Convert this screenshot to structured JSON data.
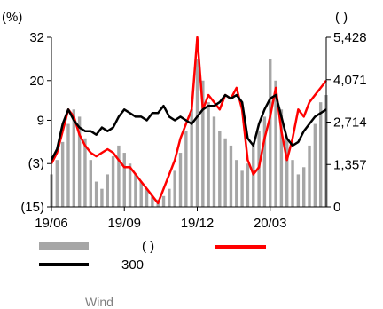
{
  "chart_data": {
    "type": "bar+line",
    "left_axis": {
      "unit_label": "(%)",
      "ticks": [
        "32",
        "20",
        "9",
        "(3)",
        "(15)"
      ],
      "values": [
        32,
        20,
        9,
        -3,
        -15
      ],
      "ylim": [
        -15,
        32
      ]
    },
    "right_axis": {
      "unit_label": "(      )",
      "ticks": [
        "5,428",
        "4,071",
        "2,714",
        "1,357",
        "0"
      ],
      "values": [
        5428,
        4071,
        2714,
        1357,
        0
      ],
      "ylim": [
        0,
        5428
      ]
    },
    "x_ticks": [
      "19/06",
      "19/09",
      "19/12",
      "20/03"
    ],
    "x_tick_positions": [
      0,
      13,
      26,
      39
    ],
    "series": [
      {
        "kind": "bar",
        "axis": "left",
        "color": "#a6a6a6",
        "legend": "(      )",
        "x": [
          0,
          1,
          2,
          3,
          4,
          5,
          6,
          7,
          8,
          9,
          10,
          11,
          12,
          13,
          14,
          15,
          16,
          17,
          18,
          19,
          20,
          21,
          22,
          23,
          24,
          25,
          26,
          27,
          28,
          29,
          30,
          31,
          32,
          33,
          34,
          35,
          36,
          37,
          38,
          39,
          40,
          41,
          42,
          43,
          44,
          45,
          46,
          47,
          48,
          49
        ],
        "values": [
          -6,
          -2,
          3,
          8,
          12,
          10,
          4,
          -2,
          -8,
          -10,
          -6,
          -1,
          2,
          0,
          -3,
          -6,
          -8,
          -10,
          -12,
          -13,
          -12,
          -10,
          -5,
          0,
          6,
          12,
          26,
          20,
          14,
          10,
          6,
          4,
          2,
          -2,
          -5,
          -3,
          2,
          6,
          10,
          26,
          20,
          12,
          4,
          -2,
          -6,
          -4,
          2,
          8,
          14,
          16
        ]
      },
      {
        "kind": "line",
        "axis": "left",
        "color": "#ff0000",
        "legend": "",
        "x": [
          0,
          1,
          2,
          3,
          4,
          5,
          6,
          7,
          8,
          9,
          10,
          11,
          12,
          13,
          14,
          15,
          16,
          17,
          18,
          19,
          20,
          21,
          22,
          23,
          24,
          25,
          26,
          27,
          28,
          29,
          30,
          31,
          32,
          33,
          34,
          35,
          36,
          37,
          38,
          39,
          40,
          41,
          42,
          43,
          44,
          45,
          46,
          47,
          48,
          49
        ],
        "values": [
          -3,
          0,
          6,
          12,
          10,
          5,
          2,
          0,
          -1,
          0,
          1,
          0,
          -2,
          -4,
          -4,
          -6,
          -8,
          -10,
          -12,
          -14,
          -10,
          -6,
          -2,
          4,
          8,
          12,
          32,
          12,
          16,
          14,
          12,
          16,
          15,
          18,
          12,
          -2,
          -6,
          -4,
          4,
          10,
          18,
          6,
          -2,
          4,
          12,
          10,
          14,
          16,
          18,
          20
        ]
      },
      {
        "kind": "line",
        "axis": "left",
        "color": "#000000",
        "legend": "300",
        "x": [
          0,
          1,
          2,
          3,
          4,
          5,
          6,
          7,
          8,
          9,
          10,
          11,
          12,
          13,
          14,
          15,
          16,
          17,
          18,
          19,
          20,
          21,
          22,
          23,
          24,
          25,
          26,
          27,
          28,
          29,
          30,
          31,
          32,
          33,
          34,
          35,
          36,
          37,
          38,
          39,
          40,
          41,
          42,
          43,
          44,
          45,
          46,
          47,
          48,
          49
        ],
        "values": [
          -2,
          1,
          8,
          12,
          9,
          7,
          6,
          6,
          5,
          7,
          6,
          7,
          10,
          12,
          11,
          10,
          10,
          9,
          11,
          11,
          13,
          10,
          9,
          10,
          9,
          8,
          10,
          12,
          13,
          13,
          14,
          16,
          15,
          16,
          14,
          4,
          2,
          8,
          12,
          15,
          16,
          10,
          4,
          2,
          3,
          6,
          8,
          10,
          11,
          12
        ]
      }
    ],
    "source_note": "Wind"
  }
}
